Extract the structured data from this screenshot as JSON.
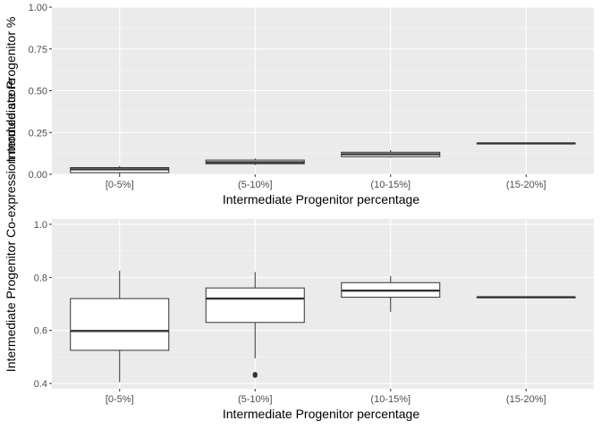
{
  "colors": {
    "panel_background": "#ebebeb",
    "grid_major": "#ffffff",
    "box_fill": "#ffffff",
    "box_line": "#333333",
    "tick_text": "#4d4d4d",
    "title_text": "#000000"
  },
  "shared_ylabel": "Intermediate Progenitor Co-expression module score",
  "chart_data": [
    {
      "type": "boxplot",
      "panel": "top",
      "ylabel": "Intermediate Progenitor %",
      "xlabel": "Intermediate Progenitor percentage",
      "categories": [
        "[0-5%]",
        "(5-10%]",
        "(10-15%]",
        "(15-20%]"
      ],
      "ylim": [
        0,
        1
      ],
      "yticks": [
        0,
        0.25,
        0.5,
        0.75,
        1
      ],
      "ytick_labels": [
        "0.00",
        "0.25",
        "0.50",
        "0.75",
        "1.00"
      ],
      "grid": true,
      "boxes": [
        {
          "whisker_low": 0.0,
          "q1": 0.01,
          "median": 0.03,
          "q3": 0.04,
          "whisker_high": 0.05,
          "outliers": []
        },
        {
          "whisker_low": 0.055,
          "q1": 0.063,
          "median": 0.072,
          "q3": 0.085,
          "whisker_high": 0.095,
          "outliers": []
        },
        {
          "whisker_low": 0.1,
          "q1": 0.105,
          "median": 0.12,
          "q3": 0.132,
          "whisker_high": 0.145,
          "outliers": []
        },
        {
          "whisker_low": 0.185,
          "q1": 0.185,
          "median": 0.185,
          "q3": 0.185,
          "whisker_high": 0.185,
          "outliers": []
        }
      ]
    },
    {
      "type": "boxplot",
      "panel": "bottom",
      "xlabel": "Intermediate Progenitor percentage",
      "categories": [
        "[0-5%]",
        "(5-10%]",
        "(10-15%]",
        "(15-20%]"
      ],
      "ylim": [
        0.38,
        1.02
      ],
      "yticks": [
        0.4,
        0.6,
        0.8,
        1.0
      ],
      "ytick_labels": [
        "0.4",
        "0.6",
        "0.8",
        "1.0"
      ],
      "grid": true,
      "boxes": [
        {
          "whisker_low": 0.405,
          "q1": 0.525,
          "median": 0.598,
          "q3": 0.72,
          "whisker_high": 0.825,
          "outliers": []
        },
        {
          "whisker_low": 0.495,
          "q1": 0.63,
          "median": 0.72,
          "q3": 0.76,
          "whisker_high": 0.82,
          "outliers": [
            0.43,
            0.435
          ]
        },
        {
          "whisker_low": 0.67,
          "q1": 0.725,
          "median": 0.75,
          "q3": 0.78,
          "whisker_high": 0.805,
          "outliers": []
        },
        {
          "whisker_low": 0.725,
          "q1": 0.725,
          "median": 0.725,
          "q3": 0.725,
          "whisker_high": 0.725,
          "outliers": []
        }
      ]
    }
  ]
}
